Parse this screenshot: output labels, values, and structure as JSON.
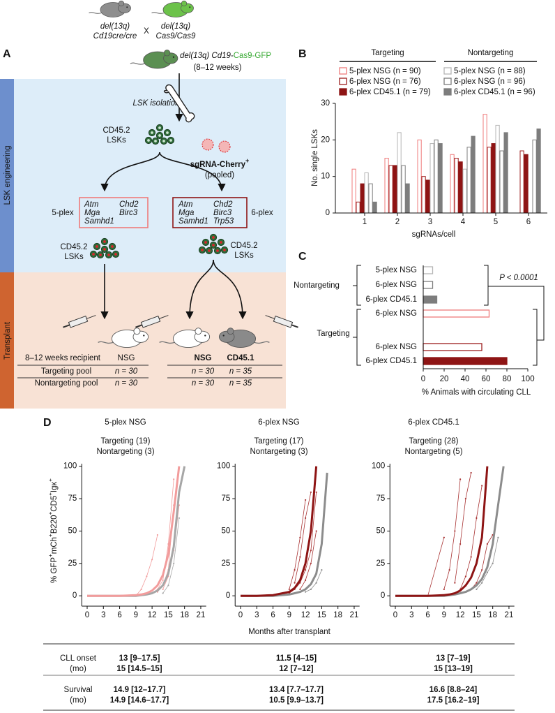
{
  "panel_a": {
    "label": "A",
    "parents": {
      "left": [
        "del(13q)",
        "Cd19cre/cre"
      ],
      "cross": "X",
      "right": [
        "del(13q)",
        "Cas9/Cas9"
      ]
    },
    "offspring": {
      "genotype": "del(13q) Cd19-",
      "reporter": "Cas9-GFP",
      "age": "(8–12 weeks)"
    },
    "sections": [
      "LSK engineering",
      "Transplant"
    ],
    "isolation": "LSK isolation",
    "cells": [
      "CD45.2",
      "LSKs"
    ],
    "library": {
      "name": "sgRNA-Cherry",
      "sup": "+",
      "note": "(pooled)"
    },
    "pools": [
      {
        "name": "5-plex",
        "genes": [
          "Atm",
          "Chd2",
          "Mga",
          "Birc3",
          "Samhd1"
        ]
      },
      {
        "name": "6-plex",
        "genes": [
          "Atm",
          "Chd2",
          "Mga",
          "Birc3",
          "Samhd1",
          "Trp53"
        ]
      }
    ],
    "recipients": {
      "header": "8–12 weeks recipient",
      "strains": [
        "NSG",
        "NSG",
        "CD45.1"
      ],
      "rows": [
        {
          "label": "Targeting pool",
          "n": [
            "n = 30",
            "n = 30",
            "n = 35"
          ]
        },
        {
          "label": "Nontargeting pool",
          "n": [
            "n = 30",
            "n = 30",
            "n = 35"
          ]
        }
      ]
    }
  },
  "chart_data": [
    {
      "type": "bar",
      "label": "B",
      "ylabel": "No. single LSKs",
      "xlabel": "sgRNAs/cell",
      "categories": [
        "1",
        "2",
        "3",
        "4",
        "5",
        "6"
      ],
      "legend_groups": [
        "Targeting",
        "Nontargeting"
      ],
      "series": [
        {
          "name": "5-plex NSG (n = 90)",
          "color": "#ef7b7b",
          "filled": false,
          "values": [
            12,
            15,
            20,
            16,
            27,
            null
          ]
        },
        {
          "name": "6-plex NSG (n = 76)",
          "color": "#9b1c1c",
          "filled": false,
          "values": [
            3,
            13,
            10,
            15,
            18,
            17
          ]
        },
        {
          "name": "6-plex CD45.1 (n = 79)",
          "color": "#8e1414",
          "filled": true,
          "values": [
            8,
            13,
            9,
            14,
            19,
            16
          ]
        },
        {
          "name": "5-plex NSG (n = 88)",
          "color": "#b5b5b5",
          "filled": false,
          "values": [
            11,
            22,
            19,
            12,
            24,
            null
          ]
        },
        {
          "name": "6-plex NSG (n = 96)",
          "color": "#7d7d7d",
          "filled": false,
          "values": [
            8,
            13,
            20,
            18,
            17,
            20
          ]
        },
        {
          "name": "6-plex CD45.1 (n = 96)",
          "color": "#7d7d7d",
          "filled": true,
          "values": [
            3,
            8,
            19,
            21,
            22,
            23
          ]
        }
      ],
      "ylim": [
        0,
        30
      ],
      "yticks": [
        0,
        10,
        20,
        30
      ]
    },
    {
      "type": "barh",
      "label": "C",
      "xlabel": "% Animals with circulating CLL",
      "categories": [
        "5-plex NSG",
        "6-plex NSG",
        "6-plex CD45.1",
        "6-plex NSG",
        "6-plex NSG",
        "6-plex CD45.1"
      ],
      "groups": [
        "Nontargeting",
        "Targeting"
      ],
      "values": [
        9,
        9,
        13,
        63,
        56,
        80
      ],
      "colors": [
        "#b5b5b5",
        "#7d7d7d",
        "#7d7d7d",
        "#ef7b7b",
        "#9b1c1c",
        "#8e1414"
      ],
      "filled": [
        false,
        false,
        true,
        false,
        false,
        true
      ],
      "annotation": "P < 0.0001",
      "xlim": [
        0,
        100
      ],
      "xticks": [
        0,
        20,
        40,
        60,
        80,
        100
      ]
    },
    {
      "type": "line",
      "title": "5-plex NSG",
      "annotations": [
        "Targeting (19)",
        "Nontargeting (3)"
      ],
      "x": [
        0,
        3,
        6,
        9,
        10,
        11,
        12,
        13,
        14,
        15,
        16,
        17,
        18,
        19,
        20
      ],
      "series": [
        {
          "color": "#f29c9c",
          "width": 3,
          "values": [
            0,
            0,
            0,
            0.5,
            1,
            2,
            4,
            8,
            16,
            32,
            65,
            100,
            null,
            null,
            null
          ]
        },
        {
          "color": "#a6a6a6",
          "width": 3,
          "values": [
            0,
            0,
            0,
            0,
            0.5,
            1,
            2,
            4,
            8,
            17,
            38,
            80,
            100,
            null,
            null
          ]
        },
        {
          "color": "#f29c9c",
          "width": 0.8,
          "values": [
            null,
            null,
            null,
            0,
            5,
            15,
            28,
            47,
            null,
            null,
            null,
            null,
            null,
            null,
            null
          ]
        },
        {
          "color": "#f29c9c",
          "width": 0.8,
          "values": [
            null,
            null,
            null,
            null,
            null,
            null,
            2,
            5,
            12,
            40,
            90,
            null,
            null,
            null,
            null
          ]
        },
        {
          "color": "#f29c9c",
          "width": 0.8,
          "values": [
            null,
            null,
            null,
            null,
            null,
            null,
            null,
            3,
            8,
            20,
            70,
            null,
            null,
            null,
            null
          ]
        },
        {
          "color": "#f29c9c",
          "width": 0.8,
          "values": [
            null,
            null,
            null,
            null,
            null,
            null,
            null,
            null,
            5,
            15,
            35,
            70,
            null,
            null,
            null
          ]
        },
        {
          "color": "#a6a6a6",
          "width": 0.8,
          "values": [
            null,
            null,
            null,
            null,
            null,
            null,
            null,
            null,
            2,
            8,
            25,
            60,
            null,
            null,
            null
          ]
        }
      ],
      "xlim": [
        -1,
        22
      ],
      "xticks": [
        0,
        3,
        6,
        9,
        12,
        15,
        18,
        21
      ],
      "ylim": [
        -8,
        102
      ],
      "yticks": [
        0,
        25,
        50,
        75,
        100
      ]
    },
    {
      "type": "line",
      "title": "6-plex NSG",
      "annotations": [
        "Targeting (17)",
        "Nontargeting (3)"
      ],
      "x": [
        0,
        3,
        6,
        9,
        10,
        11,
        12,
        13,
        14,
        15,
        16,
        17,
        18,
        19,
        20
      ],
      "series": [
        {
          "color": "#8e1414",
          "width": 3,
          "values": [
            0,
            0,
            0.5,
            3,
            6,
            12,
            25,
            50,
            100,
            null,
            null,
            null,
            null,
            null,
            null
          ]
        },
        {
          "color": "#8c8c8c",
          "width": 3,
          "values": [
            0,
            0,
            0,
            1,
            2,
            3,
            5,
            9,
            17,
            40,
            95,
            null,
            null,
            null,
            null
          ]
        },
        {
          "color": "#a83232",
          "width": 0.8,
          "values": [
            null,
            null,
            null,
            5,
            20,
            45,
            74,
            null,
            null,
            null,
            null,
            null,
            null,
            null,
            null
          ]
        },
        {
          "color": "#a83232",
          "width": 0.8,
          "values": [
            null,
            null,
            null,
            null,
            10,
            30,
            60,
            80,
            null,
            null,
            null,
            null,
            null,
            null,
            null
          ]
        },
        {
          "color": "#a83232",
          "width": 0.8,
          "values": [
            null,
            null,
            null,
            2,
            5,
            10,
            20,
            35,
            80,
            null,
            null,
            null,
            null,
            null,
            null
          ]
        },
        {
          "color": "#a83232",
          "width": 0.8,
          "values": [
            null,
            null,
            null,
            null,
            null,
            5,
            12,
            25,
            50,
            null,
            null,
            null,
            null,
            null,
            null
          ]
        },
        {
          "color": "#8c8c8c",
          "width": 0.8,
          "values": [
            null,
            null,
            null,
            null,
            null,
            null,
            3,
            5,
            10,
            20,
            null,
            null,
            null,
            null,
            null
          ]
        }
      ],
      "xlim": [
        -1,
        22
      ],
      "xticks": [
        0,
        3,
        6,
        9,
        12,
        15,
        18,
        21
      ],
      "ylim": [
        -8,
        102
      ],
      "yticks": [
        0,
        25,
        50,
        75,
        100
      ]
    },
    {
      "type": "line",
      "title": "6-plex CD45.1",
      "annotations": [
        "Targeting (28)",
        "Nontargeting (5)"
      ],
      "x": [
        0,
        3,
        6,
        9,
        10,
        11,
        12,
        13,
        14,
        15,
        16,
        17,
        18,
        19,
        20
      ],
      "series": [
        {
          "color": "#8e1414",
          "width": 3,
          "values": [
            0,
            0,
            0,
            0.5,
            1,
            2,
            4,
            8,
            14,
            25,
            45,
            100,
            null,
            null,
            null
          ]
        },
        {
          "color": "#8c8c8c",
          "width": 3,
          "values": [
            0,
            0,
            0,
            0,
            0.5,
            1,
            2,
            3,
            5,
            8,
            13,
            22,
            40,
            70,
            100
          ]
        },
        {
          "color": "#a83232",
          "width": 0.8,
          "values": [
            null,
            null,
            0,
            45,
            null,
            null,
            null,
            null,
            null,
            null,
            null,
            null,
            null,
            null,
            null
          ]
        },
        {
          "color": "#a83232",
          "width": 0.8,
          "values": [
            null,
            null,
            null,
            5,
            20,
            50,
            90,
            null,
            null,
            null,
            null,
            null,
            null,
            null,
            null
          ]
        },
        {
          "color": "#a83232",
          "width": 0.8,
          "values": [
            null,
            null,
            null,
            null,
            null,
            10,
            40,
            75,
            95,
            null,
            null,
            null,
            null,
            null,
            null
          ]
        },
        {
          "color": "#a83232",
          "width": 0.8,
          "values": [
            null,
            null,
            null,
            null,
            null,
            null,
            5,
            15,
            30,
            60,
            85,
            null,
            null,
            null,
            null
          ]
        },
        {
          "color": "#a83232",
          "width": 0.8,
          "values": [
            null,
            null,
            null,
            null,
            null,
            null,
            null,
            null,
            5,
            10,
            20,
            40,
            47,
            null,
            null
          ]
        },
        {
          "color": "#8c8c8c",
          "width": 0.8,
          "values": [
            null,
            null,
            null,
            null,
            null,
            null,
            null,
            null,
            null,
            5,
            10,
            18,
            25,
            45,
            null
          ]
        }
      ],
      "xlim": [
        -1,
        22
      ],
      "xticks": [
        0,
        3,
        6,
        9,
        12,
        15,
        18,
        21
      ],
      "ylim": [
        -8,
        102
      ],
      "yticks": [
        0,
        25,
        50,
        75,
        100
      ]
    }
  ],
  "panel_d": {
    "label": "D",
    "ylabel": [
      "% GFP",
      "+",
      "mCh",
      "+",
      "B220",
      "+",
      "CD5",
      "+",
      "Igκ",
      "+"
    ],
    "xlabel": "Months after transplant"
  },
  "table": {
    "rows": [
      {
        "label": [
          "CLL onset",
          "(mo)"
        ],
        "cells": [
          [
            "13 [9–17.5]",
            "15 [14.5–15]"
          ],
          [
            "11.5 [4–15]",
            "12 [7–12]"
          ],
          [
            "13 [7–19]",
            "15 [13–19]"
          ]
        ]
      },
      {
        "label": [
          "Survival",
          "(mo)"
        ],
        "cells": [
          [
            "14.9 [12–17.7]",
            "14.9 [14.6–17.7]"
          ],
          [
            "13.4 [7.7–17.7]",
            "10.5 [9.9–13.7]"
          ],
          [
            "16.6 [8.8–24]",
            "17.5 [16.2–19]"
          ]
        ]
      }
    ]
  }
}
